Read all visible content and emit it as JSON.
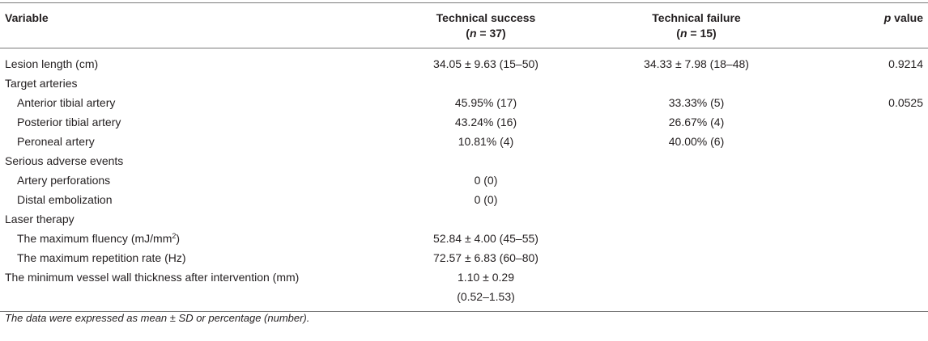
{
  "table": {
    "headers": {
      "variable": "Variable",
      "success_label": "Technical success",
      "success_n_prefix": "(",
      "success_n_var": "n",
      "success_n_value": " = 37)",
      "failure_label": "Technical failure",
      "failure_n_prefix": "(",
      "failure_n_var": "n",
      "failure_n_value": " = 15)",
      "p_var": "p",
      "p_rest": " value"
    },
    "rows": {
      "lesion_length": {
        "label": "Lesion length (cm)",
        "success": "34.05 ± 9.63 (15–50)",
        "failure": "34.33 ± 7.98 (18–48)",
        "p": "0.9214"
      },
      "target_arteries": {
        "label": "Target arteries"
      },
      "anterior_tibial": {
        "label": "Anterior tibial artery",
        "success": "45.95% (17)",
        "failure": "33.33% (5)",
        "p": "0.0525"
      },
      "posterior_tibial": {
        "label": "Posterior tibial artery",
        "success": "43.24% (16)",
        "failure": "26.67% (4)"
      },
      "peroneal": {
        "label": "Peroneal artery",
        "success": "10.81% (4)",
        "failure": "40.00% (6)"
      },
      "serious_adverse": {
        "label": "Serious adverse events"
      },
      "artery_perforations": {
        "label": "Artery perforations",
        "success": "0 (0)"
      },
      "distal_embolization": {
        "label": "Distal embolization",
        "success": "0 (0)"
      },
      "laser_therapy": {
        "label": "Laser therapy"
      },
      "max_fluency": {
        "label_main": "The maximum fluency (mJ/mm",
        "label_sup": "2",
        "label_end": ")",
        "success": "52.84 ± 4.00 (45–55)"
      },
      "max_repetition": {
        "label": "The maximum repetition rate (Hz)",
        "success": "72.57 ± 6.83 (60–80)"
      },
      "min_wall": {
        "label": "The minimum vessel wall thickness after intervention (mm)",
        "success_line1": "1.10 ± 0.29",
        "success_line2": "(0.52–1.53)"
      }
    }
  },
  "footnote": "The data were expressed as mean ± SD or percentage (number)."
}
